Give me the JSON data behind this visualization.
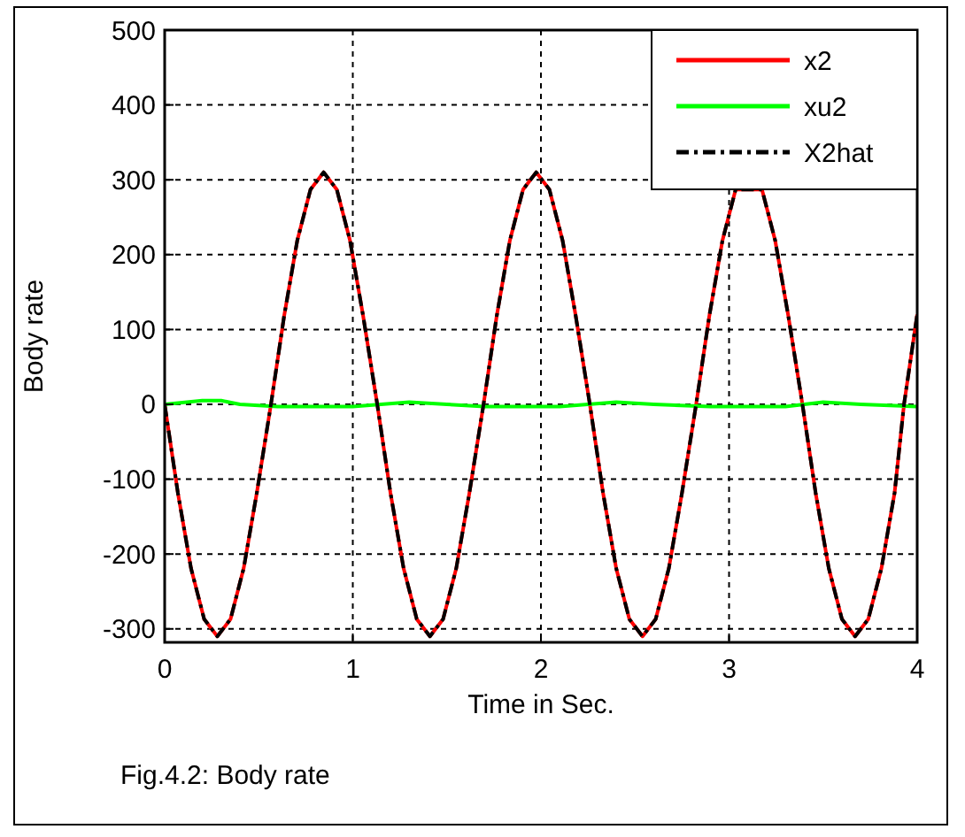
{
  "chart_data": {
    "type": "line",
    "xlabel": "Time in Sec.",
    "ylabel": "Body rate",
    "annotations": [
      "Fig.4.2: Body rate"
    ],
    "xlim": [
      0,
      4
    ],
    "xticks": [
      0,
      1,
      2,
      3,
      4
    ],
    "ylim": [
      -318,
      500
    ],
    "yticks": [
      -300,
      -200,
      -100,
      0,
      100,
      200,
      300,
      400,
      500
    ],
    "grid": true,
    "legend": "top right",
    "series": [
      {
        "name": "x2",
        "color": "#ff0000",
        "line_style": "solid",
        "x": [
          0,
          0.07,
          0.14,
          0.21,
          0.28,
          0.35,
          0.42,
          0.49,
          0.565,
          0.635,
          0.705,
          0.775,
          0.845,
          0.915,
          0.985,
          1.055,
          1.13,
          1.2,
          1.27,
          1.34,
          1.41,
          1.48,
          1.55,
          1.62,
          1.695,
          1.765,
          1.835,
          1.905,
          1.975,
          2.045,
          2.115,
          2.185,
          2.26,
          2.33,
          2.4,
          2.47,
          2.54,
          2.61,
          2.68,
          2.75,
          2.825,
          2.895,
          2.965,
          3.035,
          3.175,
          3.245,
          3.315,
          3.39,
          3.46,
          3.53,
          3.6,
          3.67,
          3.74,
          3.81,
          3.88,
          3.93,
          4
        ],
        "values": [
          0,
          -118,
          -219,
          -287,
          -310,
          -287,
          -219,
          -118,
          0,
          118,
          219,
          287,
          310,
          287,
          219,
          118,
          0,
          -118,
          -219,
          -287,
          -310,
          -287,
          -219,
          -118,
          0,
          118,
          219,
          287,
          310,
          287,
          219,
          118,
          0,
          -118,
          -219,
          -287,
          -310,
          -287,
          -219,
          -118,
          0,
          118,
          219,
          287,
          287,
          219,
          118,
          0,
          -118,
          -219,
          -287,
          -310,
          -287,
          -219,
          -118,
          0,
          120
        ]
      },
      {
        "name": "xu2",
        "color": "#00ff00",
        "line_style": "solid",
        "x": [
          0,
          0.2,
          0.3,
          0.4,
          0.6,
          1,
          1.3,
          1.5,
          1.7,
          2.1,
          2.4,
          2.6,
          2.9,
          3.3,
          3.5,
          3.7,
          4
        ],
        "values": [
          0,
          5,
          5,
          0,
          -3,
          -3,
          3,
          0,
          -3,
          -3,
          3,
          0,
          -3,
          -3,
          3,
          0,
          -3
        ]
      },
      {
        "name": "X2hat",
        "color": "#000000",
        "line_style": "dashdot",
        "x": [
          0,
          0.07,
          0.14,
          0.21,
          0.28,
          0.35,
          0.42,
          0.49,
          0.565,
          0.635,
          0.705,
          0.775,
          0.845,
          0.915,
          0.985,
          1.055,
          1.13,
          1.2,
          1.27,
          1.34,
          1.41,
          1.48,
          1.55,
          1.62,
          1.695,
          1.765,
          1.835,
          1.905,
          1.975,
          2.045,
          2.115,
          2.185,
          2.26,
          2.33,
          2.4,
          2.47,
          2.54,
          2.61,
          2.68,
          2.75,
          2.825,
          2.895,
          2.965,
          3.035,
          3.175,
          3.245,
          3.315,
          3.39,
          3.46,
          3.53,
          3.6,
          3.67,
          3.74,
          3.81,
          3.88,
          3.93,
          4
        ],
        "values": [
          0,
          -118,
          -219,
          -287,
          -310,
          -287,
          -219,
          -118,
          0,
          118,
          219,
          287,
          310,
          287,
          219,
          118,
          0,
          -118,
          -219,
          -287,
          -310,
          -287,
          -219,
          -118,
          0,
          118,
          219,
          287,
          310,
          287,
          219,
          118,
          0,
          -118,
          -219,
          -287,
          -310,
          -287,
          -219,
          -118,
          0,
          118,
          219,
          287,
          287,
          219,
          118,
          0,
          -118,
          -219,
          -287,
          -310,
          -287,
          -219,
          -118,
          0,
          120
        ]
      }
    ]
  }
}
